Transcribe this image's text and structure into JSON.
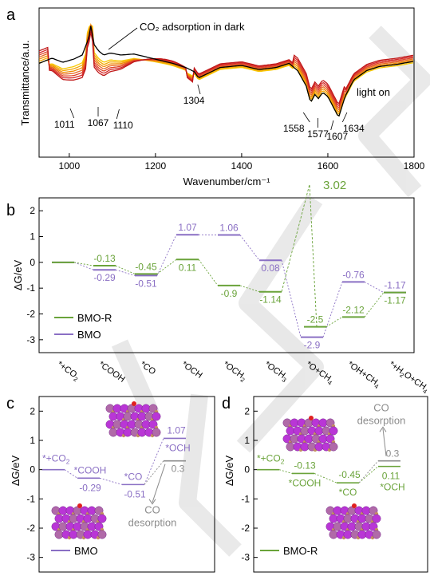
{
  "panels": {
    "a": "a",
    "b": "b",
    "c": "c",
    "d": "d"
  },
  "colors": {
    "bmo": "#8a6fc4",
    "bmo_r": "#6aa33a",
    "gray": "#8c8c8c",
    "black": "#000000"
  },
  "chart_data": [
    {
      "id": "a",
      "type": "line",
      "xlabel": "Wavenumber/cm⁻¹",
      "ylabel": "Transmittance/a.u.",
      "xlim": [
        930,
        1800
      ],
      "xticks": [
        1000,
        1200,
        1400,
        1600,
        1800
      ],
      "yticks_shown": false,
      "annotations": {
        "dark": "CO₂ adsorption in dark",
        "light": "light on"
      },
      "peaks": [
        "1011",
        "1067",
        "1110",
        "1304",
        "1558",
        "1577",
        "1607",
        "1634"
      ],
      "peak_positions": [
        1011,
        1067,
        1110,
        1304,
        1558,
        1577,
        1607,
        1634
      ],
      "dark_curve": {
        "x": [
          930,
          960,
          985,
          1010,
          1030,
          1045,
          1050,
          1058,
          1068,
          1080,
          1095,
          1120,
          1150,
          1200,
          1240,
          1270,
          1290,
          1300,
          1320,
          1350,
          1400,
          1440,
          1480,
          1510,
          1530,
          1550,
          1560,
          1570,
          1578,
          1588,
          1600,
          1610,
          1625,
          1640,
          1660,
          1690,
          1720,
          1760,
          1800
        ],
        "y": [
          0.62,
          0.67,
          0.63,
          0.66,
          0.7,
          0.86,
          0.98,
          0.8,
          0.74,
          0.7,
          0.72,
          0.7,
          0.71,
          0.66,
          0.62,
          0.58,
          0.54,
          0.48,
          0.52,
          0.58,
          0.6,
          0.56,
          0.58,
          0.62,
          0.55,
          0.4,
          0.24,
          0.32,
          0.28,
          0.34,
          0.3,
          0.22,
          0.1,
          0.3,
          0.46,
          0.55,
          0.59,
          0.61,
          0.64
        ]
      },
      "light_series_count": 7,
      "light_colors": [
        "#f7c800",
        "#f5a800",
        "#f08a00",
        "#e86820",
        "#e04428",
        "#d42828",
        "#c01818"
      ]
    },
    {
      "id": "b",
      "type": "energy-profile",
      "ylabel": "ΔG/eV",
      "ylim": [
        -3.5,
        2.5
      ],
      "yticks": [
        -3,
        -2,
        -1,
        0,
        1,
        2
      ],
      "categories": [
        "*+CO2",
        "*COOH",
        "*CO",
        "*OCH",
        "*OCH2",
        "*OCH3",
        "*O+CH4",
        "*OH+CH4",
        "*+H2O+CH4"
      ],
      "category_labels": [
        [
          "*+CO",
          "2",
          ""
        ],
        [
          "*COOH",
          "",
          ""
        ],
        [
          "*CO",
          "",
          ""
        ],
        [
          "*OCH",
          "",
          ""
        ],
        [
          "*OCH",
          "2",
          ""
        ],
        [
          "*OCH",
          "3",
          ""
        ],
        [
          "*O+CH",
          "4",
          ""
        ],
        [
          "*OH+CH",
          "4",
          ""
        ],
        [
          "*+H",
          "2",
          "O+CH",
          "4"
        ]
      ],
      "series": [
        {
          "name": "BMO-R",
          "values": [
            0,
            -0.13,
            -0.45,
            0.11,
            -0.9,
            -1.14,
            3.02,
            -2.12,
            -1.17
          ],
          "labels": [
            "",
            "-0.13",
            "-0.45",
            "0.11",
            "-0.9",
            "-1.14",
            "3.02",
            "-2.12",
            "-1.17"
          ],
          "extra_step": {
            "after_index": 6,
            "value": -2.5,
            "label": "-2.5"
          }
        },
        {
          "name": "BMO",
          "values": [
            0,
            -0.29,
            -0.51,
            1.07,
            1.06,
            0.08,
            -2.9,
            -0.76,
            -1.17
          ],
          "labels": [
            "",
            "-0.29",
            "-0.51",
            "1.07",
            "1.06",
            "0.08",
            "-2.9",
            "-0.76",
            "-1.17"
          ]
        }
      ],
      "legend": [
        "BMO-R",
        "BMO"
      ]
    },
    {
      "id": "c",
      "type": "energy-profile",
      "ylabel": "ΔG/eV",
      "ylim": [
        -3.5,
        2.5
      ],
      "yticks": [
        -3,
        -2,
        -1,
        0,
        1,
        2
      ],
      "series": [
        {
          "name": "BMO",
          "states": [
            "*+CO2",
            "*COOH",
            "*CO",
            "*OCH"
          ],
          "values": [
            0,
            -0.29,
            -0.51,
            1.07
          ]
        }
      ],
      "branch": {
        "value": 0.3,
        "label": "0.3",
        "text": "CO desorption"
      },
      "state_labels": {
        "s0": "*+CO",
        "s0_sub": "2",
        "s1": "*COOH",
        "s2": "*CO",
        "s3": "*OCH"
      },
      "value_labels": [
        "-0.29",
        "-0.51",
        "1.07"
      ],
      "legend": [
        "BMO"
      ]
    },
    {
      "id": "d",
      "type": "energy-profile",
      "ylabel": "ΔG/eV",
      "ylim": [
        -3.5,
        2.5
      ],
      "yticks": [
        -3,
        -2,
        -1,
        0,
        1,
        2
      ],
      "series": [
        {
          "name": "BMO-R",
          "states": [
            "*+CO2",
            "*COOH",
            "*CO",
            "*OCH"
          ],
          "values": [
            0,
            -0.13,
            -0.45,
            0.11
          ]
        }
      ],
      "branch": {
        "value": 0.3,
        "label": "0.3",
        "text": "CO desorption"
      },
      "state_labels": {
        "s0": "*+CO",
        "s0_sub": "2",
        "s1": "*COOH",
        "s2": "*CO",
        "s3": "*OCH"
      },
      "value_labels": [
        "-0.13",
        "-0.45",
        "0.11"
      ],
      "legend": [
        "BMO-R"
      ]
    }
  ]
}
